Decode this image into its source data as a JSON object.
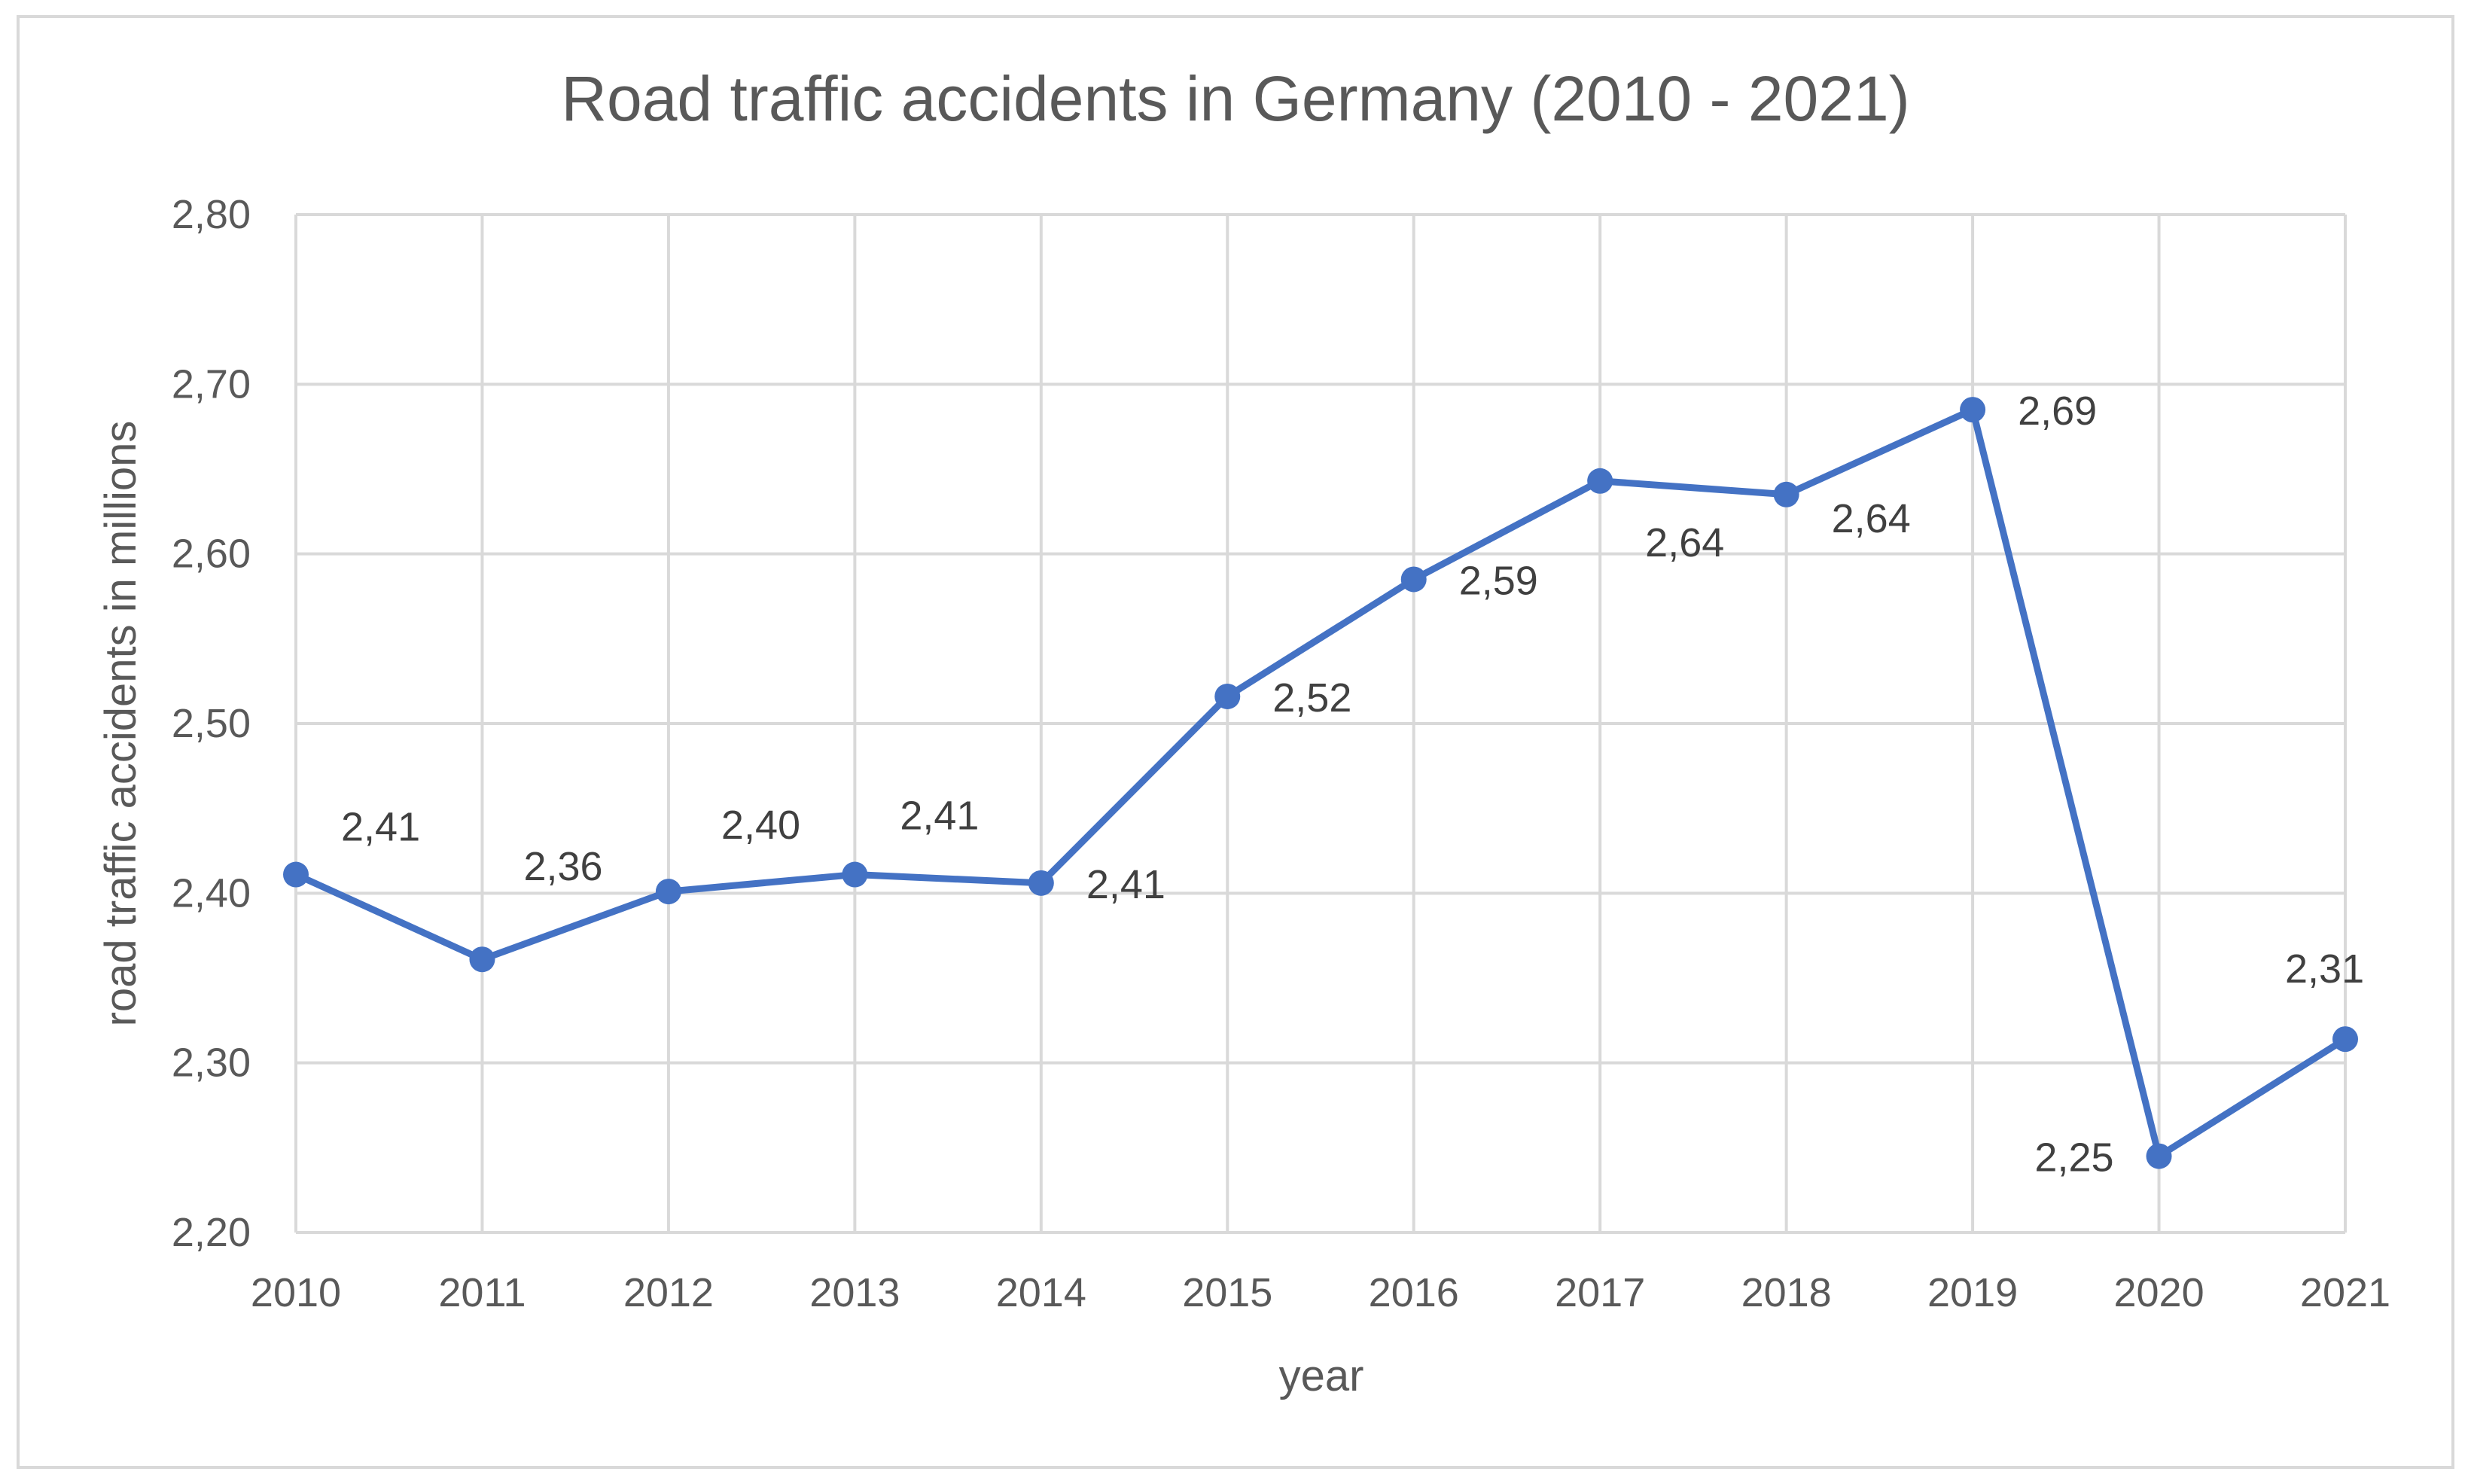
{
  "chart_data": {
    "type": "line",
    "title": "Road traffic accidents in Germany (2010 - 2021)",
    "xlabel": "year",
    "ylabel": "road traffic accidents in millions",
    "categories": [
      "2010",
      "2011",
      "2012",
      "2013",
      "2014",
      "2015",
      "2016",
      "2017",
      "2018",
      "2019",
      "2020",
      "2021"
    ],
    "series": [
      {
        "name": "road traffic accidents",
        "color": "#4472c4",
        "values": [
          2.411,
          2.361,
          2.401,
          2.411,
          2.406,
          2.516,
          2.585,
          2.643,
          2.635,
          2.685,
          2.245,
          2.314
        ],
        "labels": [
          "2,41",
          "2,36",
          "2,40",
          "2,41",
          "2,41",
          "2,52",
          "2,59",
          "2,64",
          "2,64",
          "2,69",
          "2,25",
          "2,31"
        ]
      }
    ],
    "ylim": [
      2.2,
      2.8
    ],
    "yticks": [
      2.2,
      2.3,
      2.4,
      2.5,
      2.6,
      2.7,
      2.8
    ],
    "ytick_labels": [
      "2,20",
      "2,30",
      "2,40",
      "2,50",
      "2,60",
      "2,70",
      "2,80"
    ],
    "grid": true,
    "legend": "none"
  }
}
